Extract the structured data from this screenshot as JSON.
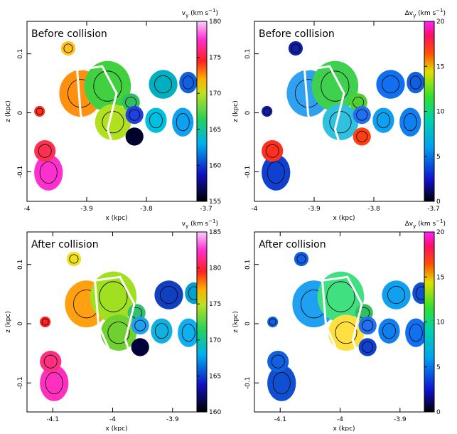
{
  "panels": [
    {
      "label": "Before collision",
      "xlabel": "x (kpc)",
      "ylabel": "z (kpc)",
      "colorbar_label": [
        "v",
        "y",
        " (km s",
        "−1",
        ")"
      ],
      "xlim": [
        -4,
        -3.7
      ],
      "xticks": [
        -4,
        -3.9,
        -3.8,
        -3.7
      ],
      "ylim": [
        -0.15,
        0.155
      ],
      "yticks": [
        -0.1,
        0,
        0.1
      ],
      "clim": [
        155,
        180
      ],
      "cticks": [
        155,
        160,
        165,
        170,
        175,
        180
      ]
    },
    {
      "label": "Before collision",
      "xlabel": "x (kpc)",
      "ylabel": "z (kpc)",
      "colorbar_label": [
        "Δv",
        "y",
        " (km s",
        "−1",
        ")"
      ],
      "xlim": [
        -4,
        -3.7
      ],
      "xticks": [
        -4,
        -3.9,
        -3.8,
        -3.7
      ],
      "ylim": [
        -0.15,
        0.155
      ],
      "yticks": [
        -0.1,
        0,
        0.1
      ],
      "clim": [
        0,
        20
      ],
      "cticks": [
        0,
        5,
        10,
        15,
        20
      ]
    },
    {
      "label": "After collision",
      "xlabel": "x (kpc)",
      "ylabel": "z (kpc)",
      "colorbar_label": [
        "v",
        "y",
        " (km s",
        "−1",
        ")"
      ],
      "xlim": [
        -4.143,
        -3.844
      ],
      "xticks": [
        -4.1,
        -4,
        -3.9
      ],
      "ylim": [
        -0.149,
        0.155
      ],
      "yticks": [
        -0.1,
        0,
        0.1
      ],
      "clim": [
        160,
        185
      ],
      "cticks": [
        160,
        165,
        170,
        175,
        180,
        185
      ]
    },
    {
      "label": "After collision",
      "xlabel": "x (kpc)",
      "ylabel": "z (kpc)",
      "colorbar_label": [
        "Δv",
        "y",
        " (km s",
        "−1",
        ")"
      ],
      "xlim": [
        -4.143,
        -3.844
      ],
      "xticks": [
        -4.1,
        -4,
        -3.9
      ],
      "ylim": [
        -0.149,
        0.155
      ],
      "yticks": [
        -0.1,
        0,
        0.1
      ],
      "clim": [
        0,
        20
      ],
      "cticks": [
        0,
        5,
        10,
        15,
        20
      ]
    }
  ]
}
